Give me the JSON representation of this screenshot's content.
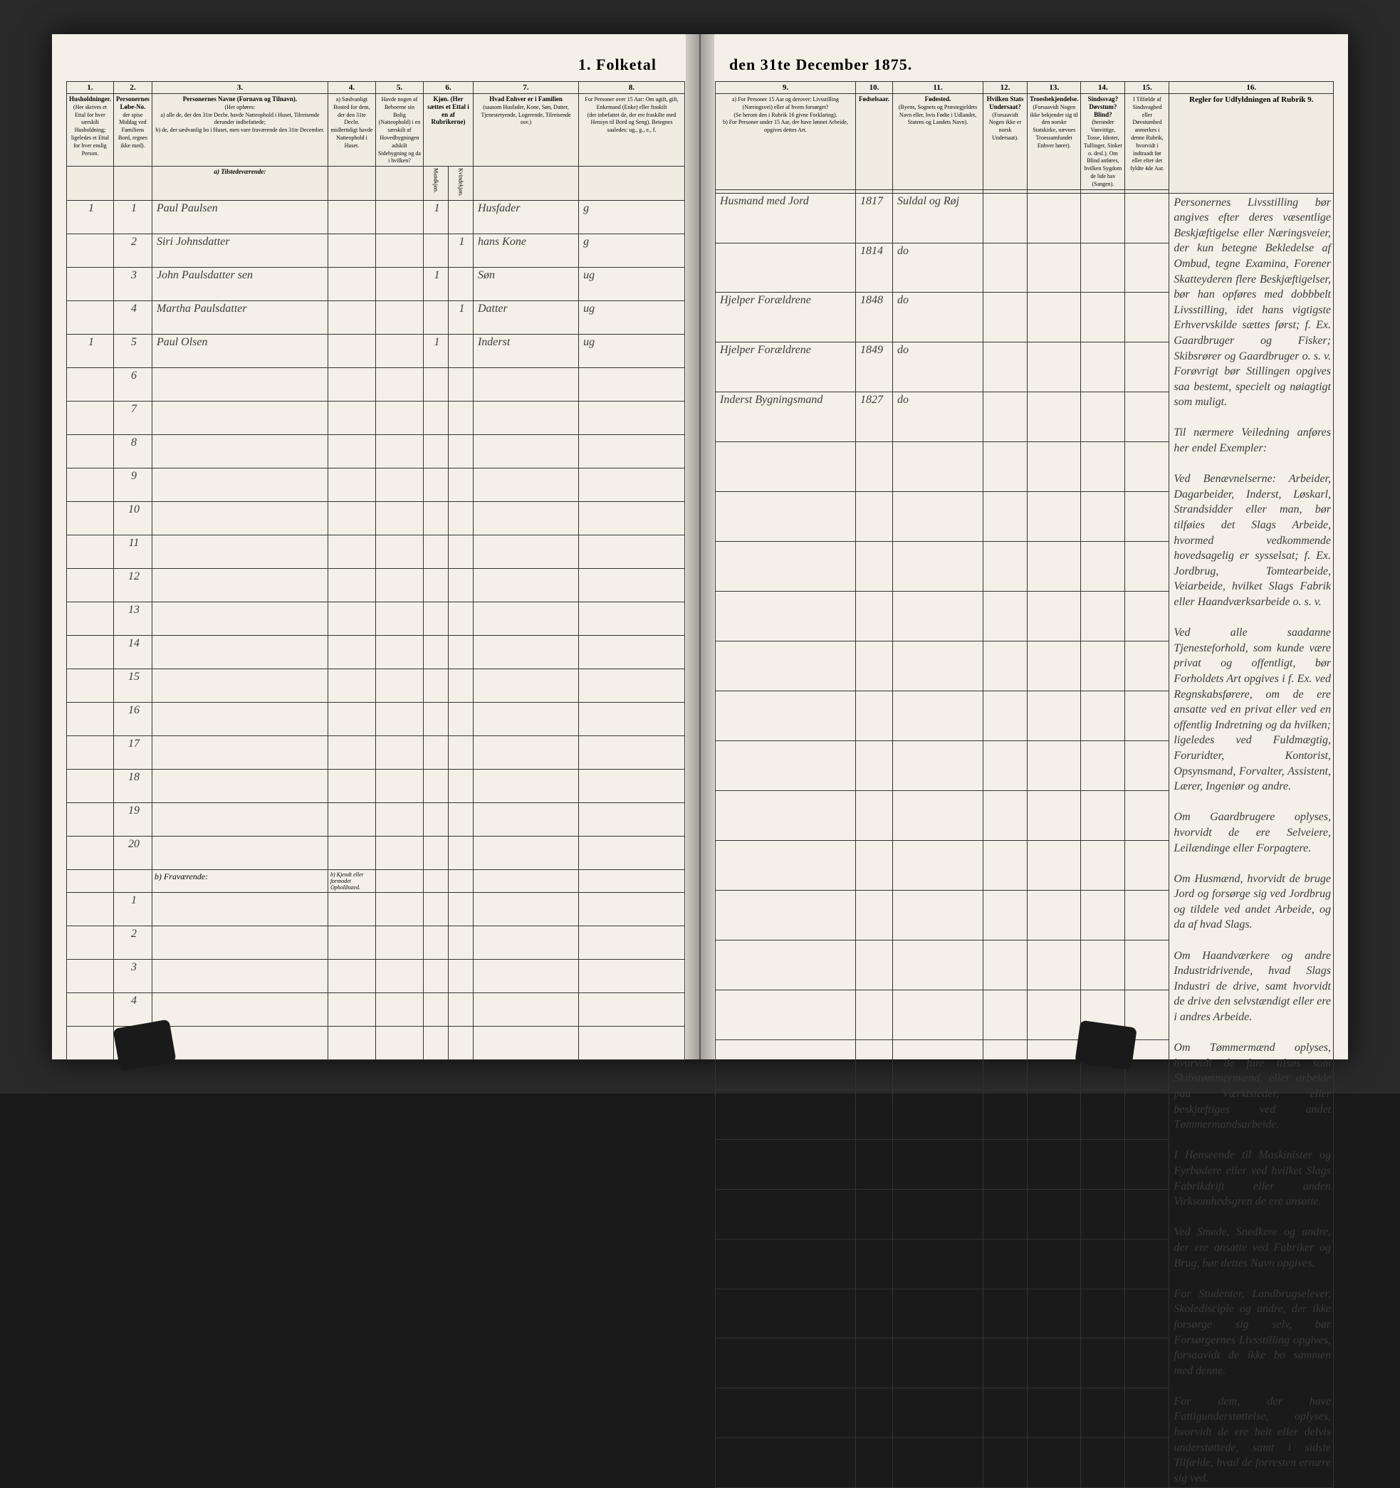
{
  "title_left": "1. Folketal",
  "title_right": "den 31te December 1875.",
  "column_numbers_left": [
    "1.",
    "2.",
    "3.",
    "4.",
    "5.",
    "6.",
    "7.",
    "8."
  ],
  "column_numbers_right": [
    "9.",
    "10.",
    "11.",
    "12.",
    "13.",
    "14.",
    "15.",
    "16."
  ],
  "headers_left": {
    "c1": "Husholdninger.",
    "c1_desc": "(Her skrives et Ettal for hver særskilt Husholdning; ligeledes et Ettal for hver enslig Person.",
    "c2": "Personernes Løbe-No.",
    "c2_desc": "der spise Middag ved Familiens Bord, regnes ikke med).",
    "c3": "Personernes Navne (Fornavn og Tilnavn).",
    "c3_desc": "(Her opføres:\na) alle de, der den 31te Decbr. havde Natteophold i Huset, Tilreisende derunder indbefattede;\nb) de, der sædvanlig bo i Huset, men vare fraværende den 31te December.",
    "c4": "a) Sædvanligt Bosted for dem, der den 31te Decbr. midlertidigt havde Natteophold i Huset.",
    "c4b": "b) Kjendt eller formodet Opholdssted.",
    "c5": "Havde nogen af Beboerne sin Bolig (Natteophold) i en særskilt af Hovedbygningen adskilt Sidebygning og da i hvilken?",
    "c6": "Kjøn. (Her sættes et Ettal i en af Rubrikerne)",
    "c6a": "Mandkjøn.",
    "c6b": "Kvindekjøn.",
    "c7": "Hvad Enhver er i Familien",
    "c7_desc": "(saasom Husfader, Kone, Søn, Datter, Tjenestetyende, Logerende, Tilreisende osv.)",
    "c8": "For Personer over 15 Aar: Om ugift, gift, Enkemand (Enke) eller fraskilt",
    "c8_desc": "(der inbefattet de, der ere fraskilte med Hensyn til Bord og Seng). Betegnes saaledes: ug., g., e., f."
  },
  "headers_right": {
    "c9": "a) For Personer 15 Aar og derover: Livsstilling (Næringsvei) eller af hvem forsørget?",
    "c9_desc": "(Se herom den i Rubrik 16 givne Forklaring).\nb) For Personer under 15 Aar, der have lønnet Arbeide, opgives dettes Art.",
    "c10": "Fødselsaar.",
    "c11": "Fødested.",
    "c11_desc": "(Byens, Sognets og Præstegjeldets Navn eller, hvis Fødte i Udlandet, Statens og Landets Navn).",
    "c12": "Hvilken Stats Undersaat?",
    "c12_desc": "(Forsaavidt Nogen ikke er norsk Undersaat).",
    "c13": "Troesbekjendelse.",
    "c13_desc": "(Forsaavidt Nogen ikke bekjender sig til den norske Statskirke, nævnes Troessamfundet Enhver hører).",
    "c14": "Sindssvag? Døvstum? Blind?",
    "c14_desc": "(herunder Vanvittige, Tosse, Idioter, Tullinger, Sinker o. desl.). Om Blind anføres, hvilken Sygdom de lide hav (Sangen).",
    "c15": "I Tilfælde af Sindsvaghed eller Døvstumhed anmerkes i denne Rubrik, hvorvidt i indtraadt før eller efter det fyldte 4de Aar.",
    "c16": "Regler for Udfyldningen af Rubrik 9."
  },
  "section_a": "a) Tilstedeværende:",
  "section_b": "b) Fraværende:",
  "rows": [
    {
      "n": "1",
      "hh": "1",
      "name": "Paul Paulsen",
      "c5": "",
      "m": "1",
      "k": "",
      "fam": "Husfader",
      "stat": "g",
      "liv": "Husmand med Jord",
      "aar": "1817",
      "sted": "Suldal og Røj"
    },
    {
      "n": "2",
      "hh": "",
      "name": "Siri Johnsdatter",
      "c5": "",
      "m": "",
      "k": "1",
      "fam": "hans Kone",
      "stat": "g",
      "liv": "",
      "aar": "1814",
      "sted": "do"
    },
    {
      "n": "3",
      "hh": "",
      "name": "John Paulsdatter sen",
      "c5": "",
      "m": "1",
      "k": "",
      "fam": "Søn",
      "stat": "ug",
      "liv": "Hjelper Forældrene",
      "aar": "1848",
      "sted": "do"
    },
    {
      "n": "4",
      "hh": "",
      "name": "Martha Paulsdatter",
      "c5": "",
      "m": "",
      "k": "1",
      "fam": "Datter",
      "stat": "ug",
      "liv": "Hjelper Forældrene",
      "aar": "1849",
      "sted": "do"
    },
    {
      "n": "5",
      "hh": "1",
      "name": "Paul Olsen",
      "c5": "",
      "m": "1",
      "k": "",
      "fam": "Inderst",
      "stat": "ug",
      "liv": "Inderst Bygningsmand",
      "aar": "1827",
      "sted": "do"
    }
  ],
  "empty_rows_a": [
    "6",
    "7",
    "8",
    "9",
    "10",
    "11",
    "12",
    "13",
    "14",
    "15",
    "16",
    "17",
    "18",
    "19",
    "20"
  ],
  "empty_rows_b": [
    "1",
    "2",
    "3",
    "4",
    "5"
  ],
  "instructions": "Personernes Livsstilling bør angives efter deres væsentlige Beskjæftigelse eller Næringsveier, der kun betegne Bekledelse af Ombud, tegne Examina, Forener Skatteyderen flere Beskjæftigelser, bør han opføres med dobbbelt Livsstilling, idet hans vigtigste Erhvervskilde sættes først; f. Ex. Gaardbruger og Fisker; Skibsrører og Gaardbruger o. s. v. Forøvrigt bør Stillingen opgives saa bestemt, specielt og nøiagtigt som muligt.\n\nTil nærmere Veiledning anføres her endel Exempler:\n\nVed Benævnelserne: Arbeider, Dagarbeider, Inderst, Løskarl, Strandsidder eller man, bør tilføies det Slags Arbeide, hvormed vedkommende hovedsagelig er sysselsat; f. Ex. Jordbrug, Tomtearbeide, Veiarbeide, hvilket Slags Fabrik eller Haandværksarbeide o. s. v.\n\nVed alle saadanne Tjenesteforhold, som kunde være privat og offentligt, bør Forholdets Art opgives i f. Ex. ved Regnskabsførere, om de ere ansatte ved en privat eller ved en offentlig Indretning og da hvilken; ligeledes ved Fuldmægtig, Foruridter, Kontorist, Opsynsmand, Forvalter, Assistent, Lærer, Ingeniør og andre.\n\nOm Gaardbrugere oplyses, hvorvidt de ere Selveiere, Leilændinge eller Forpagtere.\n\nOm Husmænd, hvorvidt de bruge Jord og forsørge sig ved Jordbrug og tildele ved andet Arbeide, og da af hvad Slags.\n\nOm Haandværkere og andre Industridrivende, hvad Slags Industri de drive, samt hvorvidt de drive den selvstændigt eller ere i andres Arbeide.\n\nOm Tømmermænd oplyses, hvorvidt de fare tilsøs som Skibstømmermænd, eller arbeide paa Værktsteder, eller beskjæftiges ved andet Tømmermandsarbeide.\n\nI Henseende til Maskinister og Fyrbødere eller ved hvilket Slags Fabrikdrift eller anden Virksomhedsgren de ere ansatte.\n\nVed Smede, Snedkere og andre, der ere ansatte ved Fabriker og Brug, bør dettes Navn opgives.\n\nFor Studenter, Landbrugselever, Skoledisciple og andre, der ikke forsørge sig selv, bør Forsørgernes Livsstilling opgives, forsaavidt de ikke bo sammen med denne.\n\nFor dem, der have Fattigunderstøttelse, oplyses, hvorvidt de ere helt eller delvis understøttede, samt i sidste Tilfælde, hvad de forresten ernære sig ved."
}
